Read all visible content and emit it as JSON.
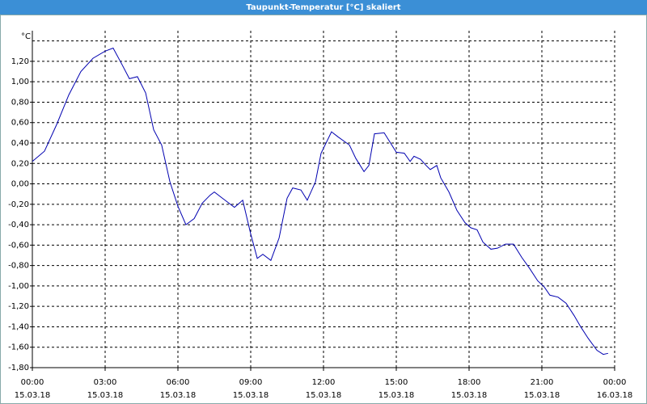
{
  "chart_data": {
    "type": "line",
    "title": "Taupunkt-Temperatur [°C] skaliert",
    "y_label": "°C",
    "xlim": [
      0,
      24
    ],
    "xticks": [
      {
        "value": 0,
        "label": "00:00",
        "date": "15.03.18"
      },
      {
        "value": 3,
        "label": "03:00",
        "date": "15.03.18"
      },
      {
        "value": 6,
        "label": "06:00",
        "date": "15.03.18"
      },
      {
        "value": 9,
        "label": "09:00",
        "date": "15.03.18"
      },
      {
        "value": 12,
        "label": "12:00",
        "date": "15.03.18"
      },
      {
        "value": 15,
        "label": "15:00",
        "date": "15.03.18"
      },
      {
        "value": 18,
        "label": "18:00",
        "date": "15.03.18"
      },
      {
        "value": 21,
        "label": "21:00",
        "date": "15.03.18"
      },
      {
        "value": 24,
        "label": "00:00",
        "date": "16.03.18"
      }
    ],
    "ylim": [
      -1.8,
      1.5
    ],
    "yticks": [
      {
        "value": -1.8,
        "label": "-1,80"
      },
      {
        "value": -1.6,
        "label": "-1,60"
      },
      {
        "value": -1.4,
        "label": "-1,40"
      },
      {
        "value": -1.2,
        "label": "-1,20"
      },
      {
        "value": -1,
        "label": "-1,00"
      },
      {
        "value": -0.8,
        "label": "-0,80"
      },
      {
        "value": -0.6,
        "label": "-0,60"
      },
      {
        "value": -0.4,
        "label": "-0,40"
      },
      {
        "value": -0.2,
        "label": "-0,20"
      },
      {
        "value": 0,
        "label": "0,00"
      },
      {
        "value": 0.2,
        "label": "0,20"
      },
      {
        "value": 0.4,
        "label": "0,40"
      },
      {
        "value": 0.6,
        "label": "0,60"
      },
      {
        "value": 0.8,
        "label": "0,80"
      },
      {
        "value": 1,
        "label": "1,00"
      },
      {
        "value": 1.2,
        "label": "1,20"
      }
    ],
    "ygrid": [
      1.4
    ],
    "grid": true,
    "series": [
      {
        "color": "#0000b0",
        "x": [
          0,
          0.5,
          1,
          1.5,
          2,
          2.5,
          3,
          3.33,
          3.67,
          4,
          4.33,
          4.67,
          5,
          5.33,
          5.67,
          6,
          6.33,
          6.67,
          7,
          7.33,
          7.5,
          7.83,
          8.33,
          8.67,
          9,
          9.27,
          9.5,
          9.83,
          10.17,
          10.5,
          10.73,
          11.07,
          11.33,
          11.67,
          11.9,
          12.33,
          12.6,
          13.07,
          13.33,
          13.67,
          13.87,
          14.1,
          14.5,
          15,
          15.33,
          15.57,
          15.73,
          16,
          16.23,
          16.4,
          16.67,
          16.83,
          17.17,
          17.5,
          17.83,
          18.07,
          18.33,
          18.57,
          18.9,
          19.17,
          19.5,
          19.83,
          20.17,
          20.5,
          20.83,
          21.1,
          21.33,
          21.67,
          22,
          22.33,
          22.6,
          22.9,
          23.27,
          23.53,
          23.73
        ],
        "values": [
          0.22,
          0.32,
          0.58,
          0.87,
          1.1,
          1.23,
          1.3,
          1.33,
          1.18,
          1.03,
          1.05,
          0.89,
          0.53,
          0.38,
          0.02,
          -0.22,
          -0.4,
          -0.34,
          -0.19,
          -0.11,
          -0.08,
          -0.14,
          -0.23,
          -0.16,
          -0.49,
          -0.73,
          -0.69,
          -0.75,
          -0.53,
          -0.14,
          -0.04,
          -0.06,
          -0.16,
          0.02,
          0.3,
          0.51,
          0.46,
          0.38,
          0.25,
          0.12,
          0.18,
          0.49,
          0.5,
          0.31,
          0.3,
          0.22,
          0.27,
          0.24,
          0.18,
          0.14,
          0.18,
          0.06,
          -0.08,
          -0.26,
          -0.38,
          -0.43,
          -0.45,
          -0.57,
          -0.64,
          -0.63,
          -0.59,
          -0.59,
          -0.72,
          -0.83,
          -0.95,
          -1.01,
          -1.09,
          -1.11,
          -1.17,
          -1.29,
          -1.4,
          -1.51,
          -1.63,
          -1.67,
          -1.66
        ]
      }
    ]
  }
}
